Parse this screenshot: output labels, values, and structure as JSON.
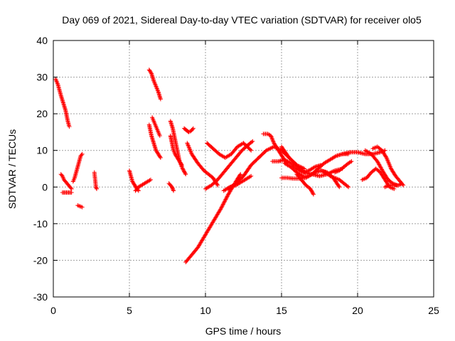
{
  "chart_data": {
    "type": "scatter",
    "title": "Day 069 of 2021, Sidereal Day-to-day VTEC variation (SDTVAR) for receiver olo5",
    "xlabel": "GPS time / hours",
    "ylabel": "SDTVAR / TECUs",
    "xlim": [
      0,
      25
    ],
    "ylim": [
      -30,
      40
    ],
    "xticks": [
      "0",
      "5",
      "10",
      "15",
      "20",
      "25"
    ],
    "yticks": [
      "-30",
      "-20",
      "-10",
      "0",
      "10",
      "20",
      "30",
      "40"
    ],
    "grid": true,
    "marker": "+",
    "color": "#ff0000",
    "series": [
      {
        "name": "t1",
        "x": [
          0.15,
          0.3,
          0.5,
          0.65,
          0.8,
          0.95,
          1.05
        ],
        "y": [
          29.5,
          28,
          25,
          23,
          21,
          18,
          16.5
        ]
      },
      {
        "name": "t2",
        "x": [
          0.5,
          0.6,
          0.7,
          0.8,
          0.9,
          1.0,
          1.1,
          1.2
        ],
        "y": [
          3.5,
          3,
          2,
          1.5,
          1,
          0.5,
          0,
          -0.5
        ]
      },
      {
        "name": "t3",
        "x": [
          0.6,
          0.8,
          1.0,
          1.2
        ],
        "y": [
          -1.5,
          -1.5,
          -1.5,
          -1.5
        ]
      },
      {
        "name": "t4",
        "x": [
          1.3,
          1.4,
          1.5,
          1.6,
          1.7,
          1.8,
          1.9
        ],
        "y": [
          1.5,
          2.5,
          4,
          5.5,
          7,
          8.5,
          9
        ]
      },
      {
        "name": "t5",
        "x": [
          1.6,
          1.9
        ],
        "y": [
          -5,
          -5.5
        ]
      },
      {
        "name": "t6",
        "x": [
          2.7,
          2.75,
          2.8,
          2.85
        ],
        "y": [
          4,
          2,
          0,
          -0.5
        ]
      },
      {
        "name": "t7",
        "x": [
          5.0,
          5.1,
          5.2,
          5.35,
          5.5,
          5.6
        ],
        "y": [
          4.5,
          3,
          1.5,
          0.5,
          -0.5,
          -1
        ]
      },
      {
        "name": "t8",
        "x": [
          5.4,
          5.6,
          5.8,
          6.0,
          6.2,
          6.4
        ],
        "y": [
          -1,
          0,
          0.5,
          1,
          1.5,
          2
        ]
      },
      {
        "name": "t9",
        "x": [
          6.3,
          6.45,
          6.6,
          6.75,
          6.9,
          7.05
        ],
        "y": [
          32,
          31,
          29,
          27.5,
          26,
          24
        ]
      },
      {
        "name": "t10",
        "x": [
          6.3,
          6.45,
          6.6,
          6.75,
          6.9,
          7.05
        ],
        "y": [
          17,
          14,
          12,
          10,
          9,
          8
        ]
      },
      {
        "name": "t11",
        "x": [
          6.5,
          6.6,
          6.7,
          6.8,
          6.9,
          7.0
        ],
        "y": [
          19,
          18,
          17,
          16,
          15,
          14
        ]
      },
      {
        "name": "t12",
        "x": [
          7.6,
          7.7,
          7.8,
          7.85,
          7.9
        ],
        "y": [
          1,
          0.5,
          0,
          -0.5,
          -1
        ]
      },
      {
        "name": "t13",
        "x": [
          7.7,
          7.8,
          7.9,
          8.0,
          8.15,
          8.3,
          8.45
        ],
        "y": [
          14,
          12,
          10,
          9,
          8,
          7,
          6
        ]
      },
      {
        "name": "t14",
        "x": [
          7.7,
          7.85,
          8.0,
          8.15,
          8.3,
          8.5,
          8.7
        ],
        "y": [
          18,
          16,
          13,
          10,
          7,
          5,
          3.5
        ]
      },
      {
        "name": "t15",
        "x": [
          8.6,
          8.75,
          8.9,
          9.05,
          9.2
        ],
        "y": [
          16,
          15.5,
          15,
          15.3,
          16
        ]
      },
      {
        "name": "t16",
        "x": [
          8.7,
          9.0,
          9.5,
          10.0,
          10.5,
          11.0,
          11.5,
          12.0,
          12.3
        ],
        "y": [
          -20.5,
          -19,
          -16.5,
          -13,
          -9.5,
          -6,
          -2,
          1.5,
          3.5
        ]
      },
      {
        "name": "t17",
        "x": [
          8.8,
          9.1,
          9.5,
          9.9,
          10.2,
          10.5,
          10.8
        ],
        "y": [
          12,
          9,
          6.5,
          4.5,
          3.5,
          2.5,
          0.5
        ]
      },
      {
        "name": "t18",
        "x": [
          10.0,
          10.4,
          10.8,
          11.2,
          11.6,
          12.0,
          12.4,
          12.8,
          13.1
        ],
        "y": [
          -0.5,
          0.5,
          2,
          4,
          6,
          8,
          10,
          11.5,
          12.5
        ]
      },
      {
        "name": "t19",
        "x": [
          10.1,
          10.5,
          10.9,
          11.3,
          11.7,
          12.1,
          12.5,
          13.0
        ],
        "y": [
          12,
          10.5,
          9,
          8,
          9,
          11,
          12,
          10
        ]
      },
      {
        "name": "t20",
        "x": [
          11.2,
          11.6,
          12.0,
          12.4,
          12.8,
          13.0
        ],
        "y": [
          -1,
          0,
          0.5,
          1.5,
          2.5,
          3
        ]
      },
      {
        "name": "t21",
        "x": [
          11.5,
          12.0,
          12.5,
          13.0,
          13.5,
          14.0,
          14.5,
          15.0,
          15.5,
          16.0,
          16.5
        ],
        "y": [
          -0.5,
          1,
          3,
          6,
          8,
          10,
          11,
          10,
          8,
          6,
          5
        ]
      },
      {
        "name": "t22",
        "x": [
          13.8,
          14.1,
          14.3,
          14.5,
          14.8,
          15.1,
          15.4
        ],
        "y": [
          14.5,
          14.5,
          14,
          12,
          10,
          8,
          6
        ]
      },
      {
        "name": "t23",
        "x": [
          14.4,
          14.8,
          15.2,
          15.6,
          16.0,
          16.4,
          16.8,
          17.2,
          17.6
        ],
        "y": [
          7,
          7,
          7.5,
          6.5,
          5,
          4,
          4.5,
          5.5,
          6
        ]
      },
      {
        "name": "t24",
        "x": [
          15.0,
          15.5,
          16.0,
          16.5,
          17.0,
          17.5,
          18.0,
          18.5,
          19.0
        ],
        "y": [
          11,
          8,
          6,
          4,
          3.5,
          3,
          3.5,
          4.5,
          5
        ]
      },
      {
        "name": "t25",
        "x": [
          15.0,
          15.4,
          15.8,
          16.2,
          16.6,
          17.0,
          17.4,
          17.8,
          18.2,
          18.6,
          19.0,
          19.4
        ],
        "y": [
          2.5,
          2.5,
          2.3,
          2.3,
          2.5,
          3.5,
          5,
          6.5,
          7.5,
          8.5,
          9,
          9
        ]
      },
      {
        "name": "t26",
        "x": [
          15.2,
          15.6,
          16.0,
          16.4,
          16.8,
          17.2,
          17.6,
          18.0,
          18.4,
          18.8
        ],
        "y": [
          6.5,
          5.5,
          4,
          3,
          3,
          4,
          4.5,
          4,
          2.5,
          0
        ]
      },
      {
        "name": "t27",
        "x": [
          16.0,
          16.3,
          16.6,
          16.9,
          17.1
        ],
        "y": [
          3.5,
          2,
          0.5,
          -0.5,
          -2
        ]
      },
      {
        "name": "t28",
        "x": [
          17.6,
          17.9,
          18.2,
          18.5,
          18.8,
          19.1,
          19.4
        ],
        "y": [
          4.5,
          4,
          3,
          2.5,
          2,
          1,
          0
        ]
      },
      {
        "name": "t29",
        "x": [
          18.5,
          18.8,
          19.1,
          19.4,
          19.6
        ],
        "y": [
          4,
          4.5,
          5.5,
          6.5,
          7
        ]
      },
      {
        "name": "t30",
        "x": [
          19.0,
          19.5,
          20.0,
          20.5,
          21.0,
          21.5,
          21.8
        ],
        "y": [
          9,
          9.5,
          9.5,
          9,
          9,
          9.5,
          10
        ]
      },
      {
        "name": "t31",
        "x": [
          20.3,
          20.6,
          20.9,
          21.2,
          21.5,
          21.8,
          22.1,
          22.4
        ],
        "y": [
          2,
          2.5,
          4,
          5,
          4,
          2,
          0,
          -0.5
        ]
      },
      {
        "name": "t32",
        "x": [
          20.5,
          20.9,
          21.3,
          21.7,
          22.0,
          22.3,
          22.6
        ],
        "y": [
          10,
          9,
          7,
          4,
          2,
          1,
          0.5
        ]
      },
      {
        "name": "t33",
        "x": [
          21.0,
          21.3,
          21.6,
          21.9,
          22.2,
          22.5,
          22.8,
          23.0
        ],
        "y": [
          10.5,
          11,
          10,
          8,
          5,
          3,
          1.5,
          0.5
        ]
      },
      {
        "name": "t34",
        "x": [
          21.8,
          22.1,
          22.4,
          22.7,
          22.9
        ],
        "y": [
          0,
          0.5,
          0.5,
          0.5,
          1
        ]
      }
    ]
  }
}
